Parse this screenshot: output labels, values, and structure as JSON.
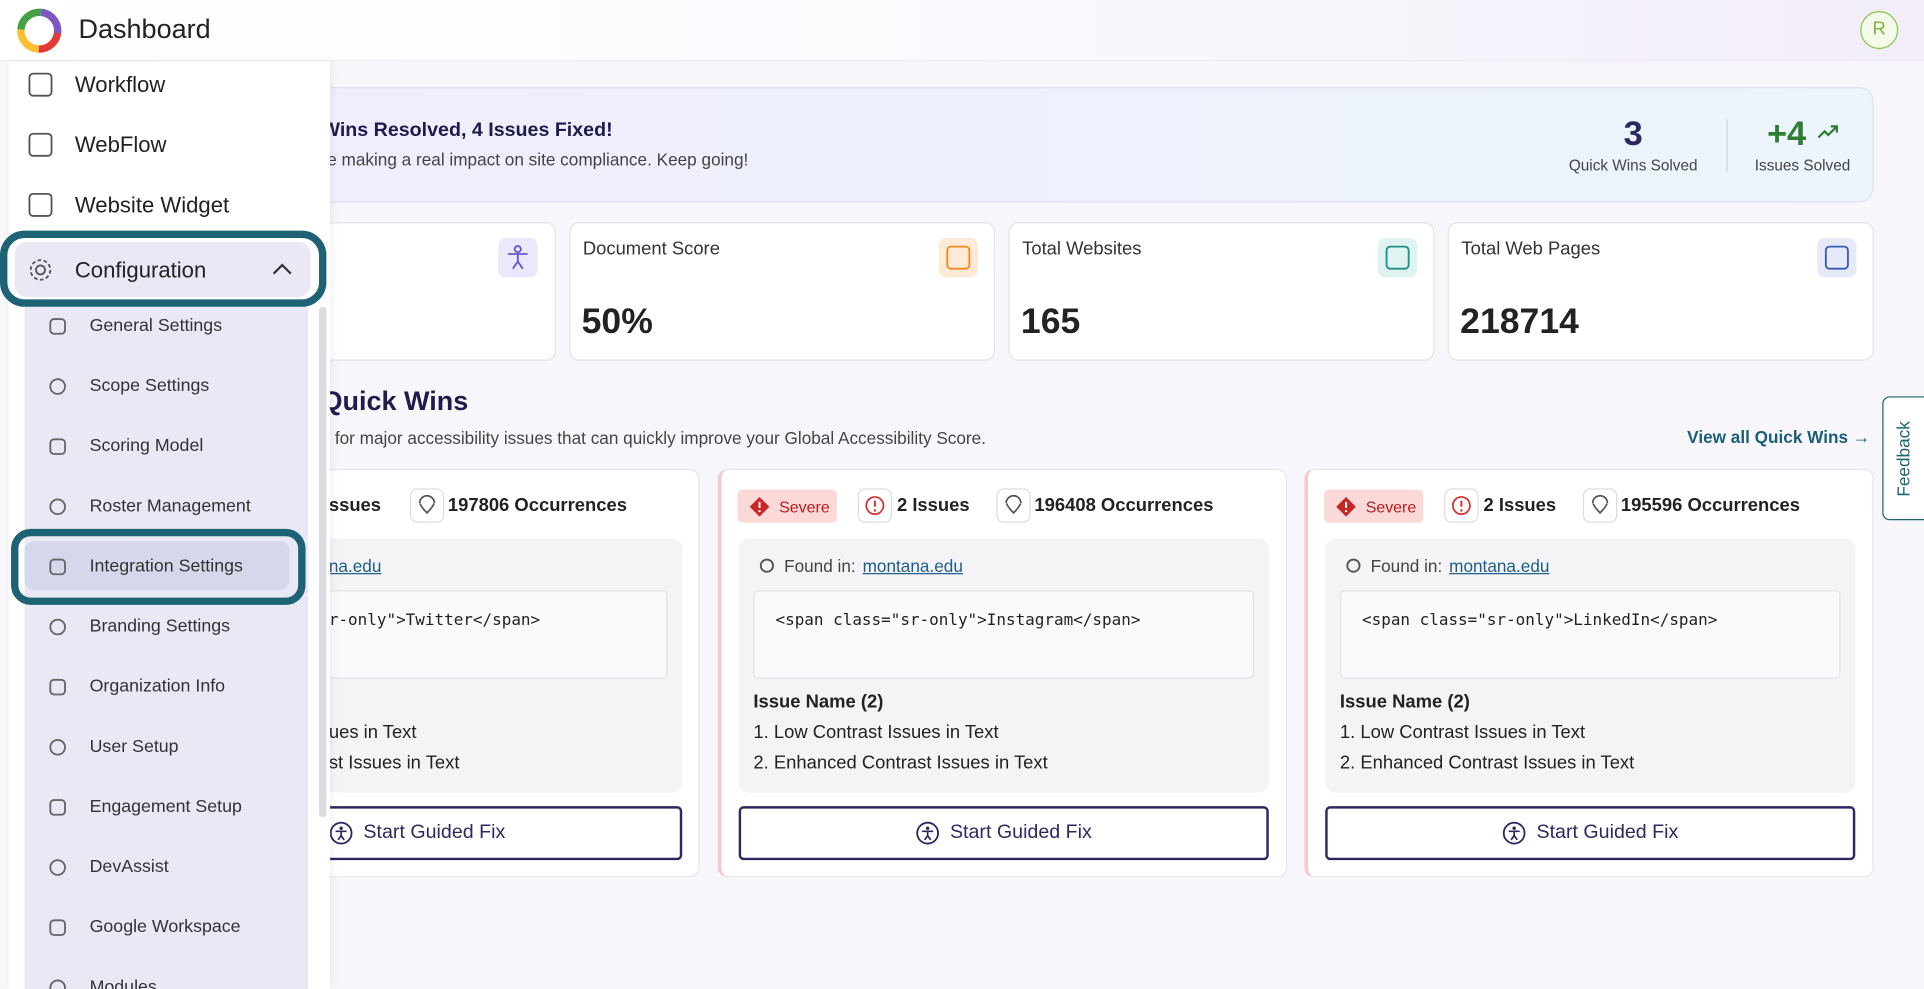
{
  "header": {
    "title": "Dashboard",
    "avatar": "R"
  },
  "sidebar": {
    "items": [
      "Workflow",
      "WebFlow",
      "Website Widget"
    ],
    "section": "Configuration",
    "subitems": [
      "General Settings",
      "Scope Settings",
      "Scoring Model",
      "Roster Management",
      "Integration Settings",
      "Branding Settings",
      "Organization Info",
      "User Setup",
      "Engagement Setup",
      "DevAssist",
      "Google Workspace",
      "Modules"
    ]
  },
  "banner": {
    "title": "Wins Resolved, 4 Issues Fixed!",
    "subtitle": "re making a real impact on site compliance. Keep going!",
    "stats": [
      {
        "value": "3",
        "label": "Quick Wins Solved"
      },
      {
        "value": "+4",
        "label": "Issues Solved"
      }
    ]
  },
  "stat_cards": [
    {
      "label": "Document Score",
      "value": "50%"
    },
    {
      "label": "Total Websites",
      "value": "165"
    },
    {
      "label": "Total Web Pages",
      "value": "218714"
    }
  ],
  "quick_wins": {
    "title": "Quick Wins",
    "subtitle": "s for major accessibility issues that can quickly improve your Global Accessibility Score.",
    "link": "View all Quick Wins",
    "cards": [
      {
        "issues": "ssues",
        "occurrences": "197806 Occurrences",
        "site": "na.edu",
        "code": "r-only\">Twitter</span>",
        "fixes": [
          "ues in Text",
          "st Issues in Text"
        ],
        "button": "Start Guided Fix"
      },
      {
        "severity": "Severe",
        "issues": "2 Issues",
        "occurrences": "196408 Occurrences",
        "found_label": "Found in:",
        "site": "montana.edu",
        "code": "<span class=\"sr-only\">Instagram</span>",
        "issue_heading": "Issue Name (2)",
        "fixes": [
          "1. Low Contrast Issues in Text",
          "2. Enhanced Contrast Issues in Text"
        ],
        "button": "Start Guided Fix"
      },
      {
        "severity": "Severe",
        "issues": "2 Issues",
        "occurrences": "195596 Occurrences",
        "found_label": "Found in:",
        "site": "montana.edu",
        "code": "<span class=\"sr-only\">LinkedIn</span>",
        "issue_heading": "Issue Name (2)",
        "fixes": [
          "1. Low Contrast Issues in Text",
          "2. Enhanced Contrast Issues in Text"
        ],
        "button": "Start Guided Fix"
      }
    ]
  },
  "feedback": "Feedback"
}
